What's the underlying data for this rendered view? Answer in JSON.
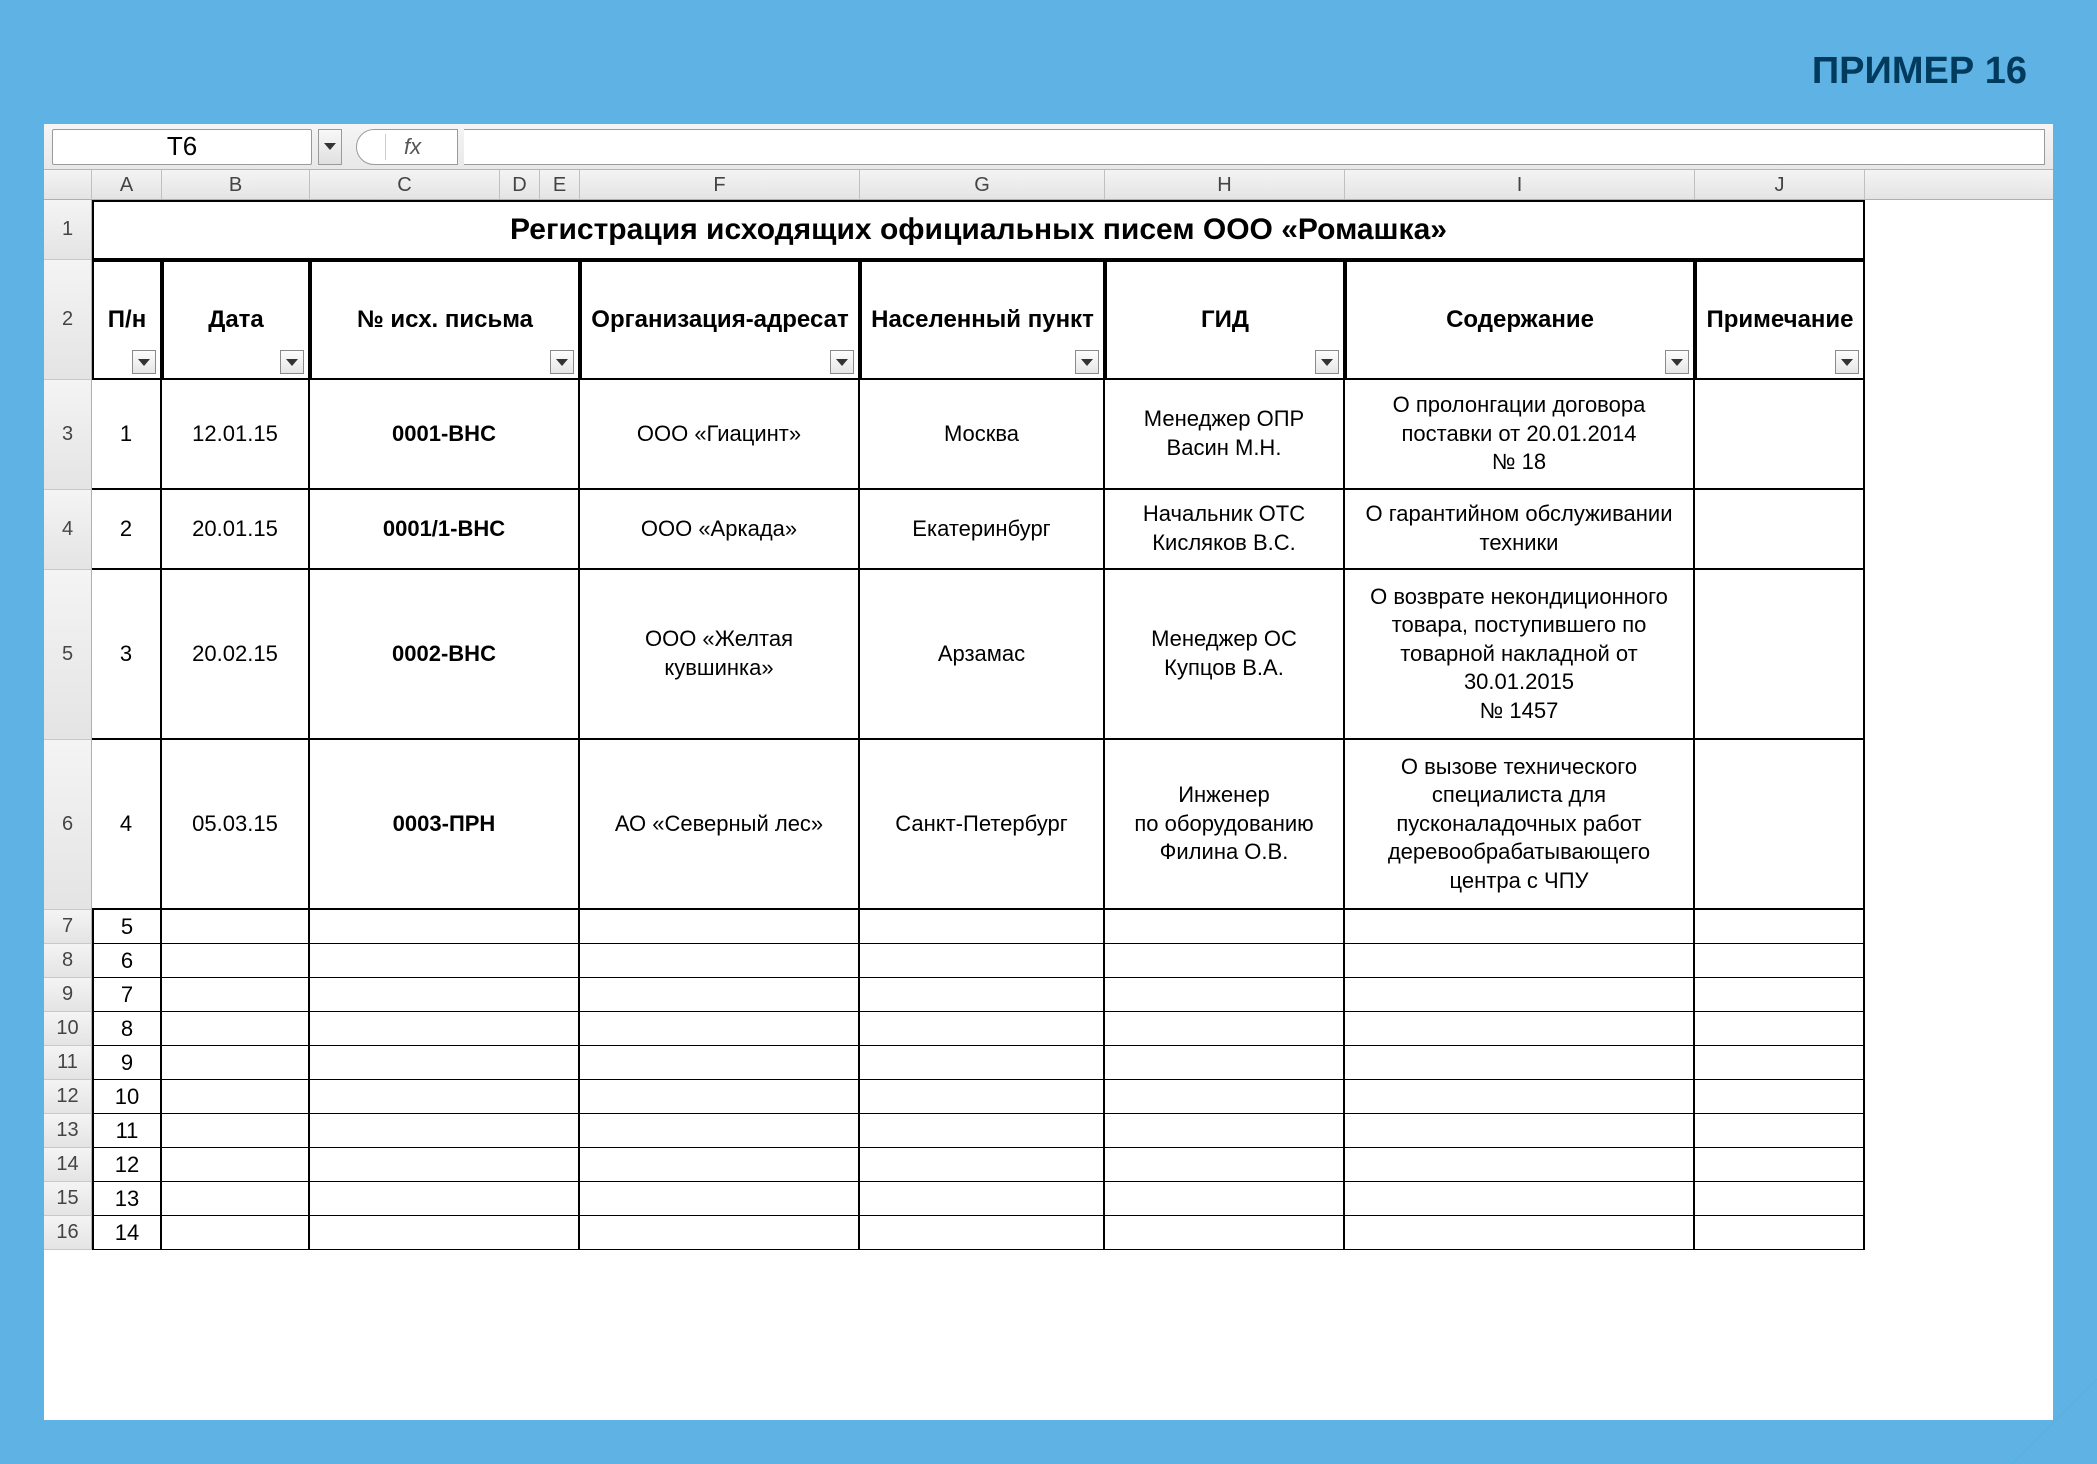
{
  "page_title": "ПРИМЕР 16",
  "frame_bg": "#5eb3e4",
  "corner_fold_color": "#0096d6",
  "formula_bar": {
    "name_box": "T6",
    "fx_label": "fx",
    "formula_value": ""
  },
  "columns": {
    "letters": [
      "A",
      "B",
      "C",
      "D",
      "E",
      "F",
      "G",
      "H",
      "I",
      "J"
    ],
    "widths": [
      70,
      148,
      190,
      40,
      40,
      280,
      245,
      240,
      350,
      170
    ],
    "merged_CDE_width": 270
  },
  "table_title": "Регистрация исходящих официальных писем ООО «Ромашка»",
  "headers": [
    "П/н",
    "Дата",
    "№ исх. письма",
    "Организация-адресат",
    "Населенный пункт",
    "ГИД",
    "Содержание",
    "Примечание"
  ],
  "rows": [
    {
      "n": "1",
      "date": "12.01.15",
      "num": "0001-ВНС",
      "org": "ООО «Гиацинт»",
      "city": "Москва",
      "gid": "Менеджер ОПР\nВасин М.Н.",
      "content": "О пролонгации договора поставки от 20.01.2014\n№ 18",
      "note": ""
    },
    {
      "n": "2",
      "date": "20.01.15",
      "num": "0001/1-ВНС",
      "org": "ООО «Аркада»",
      "city": "Екатеринбург",
      "gid": "Начальник ОТС\nКисляков В.С.",
      "content": "О гарантийном обслуживании техники",
      "note": ""
    },
    {
      "n": "3",
      "date": "20.02.15",
      "num": "0002-ВНС",
      "org": "ООО «Желтая кувшинка»",
      "city": "Арзамас",
      "gid": "Менеджер ОС\nКупцов В.А.",
      "content": "О возврате некондиционного товара, поступившего  по товарной накладной от 30.01.2015\n№ 1457",
      "note": ""
    },
    {
      "n": "4",
      "date": "05.03.15",
      "num": "0003-ПРН",
      "org": "АО «Северный лес»",
      "city": "Санкт-Петербург",
      "gid": "Инженер\nпо оборудованию\nФилина О.В.",
      "content": "О вызове технического специалиста для пусконаладочных работ деревообрабатывающего центра с ЧПУ",
      "note": ""
    }
  ],
  "empty_row_numbers": [
    "5",
    "6",
    "7",
    "8",
    "9",
    "10",
    "11",
    "12",
    "13",
    "14"
  ],
  "row_header_start": 1,
  "data_row_heights": [
    110,
    80,
    170,
    170
  ],
  "header_row_height": 120,
  "title_row_height": 60,
  "empty_row_height": 34
}
